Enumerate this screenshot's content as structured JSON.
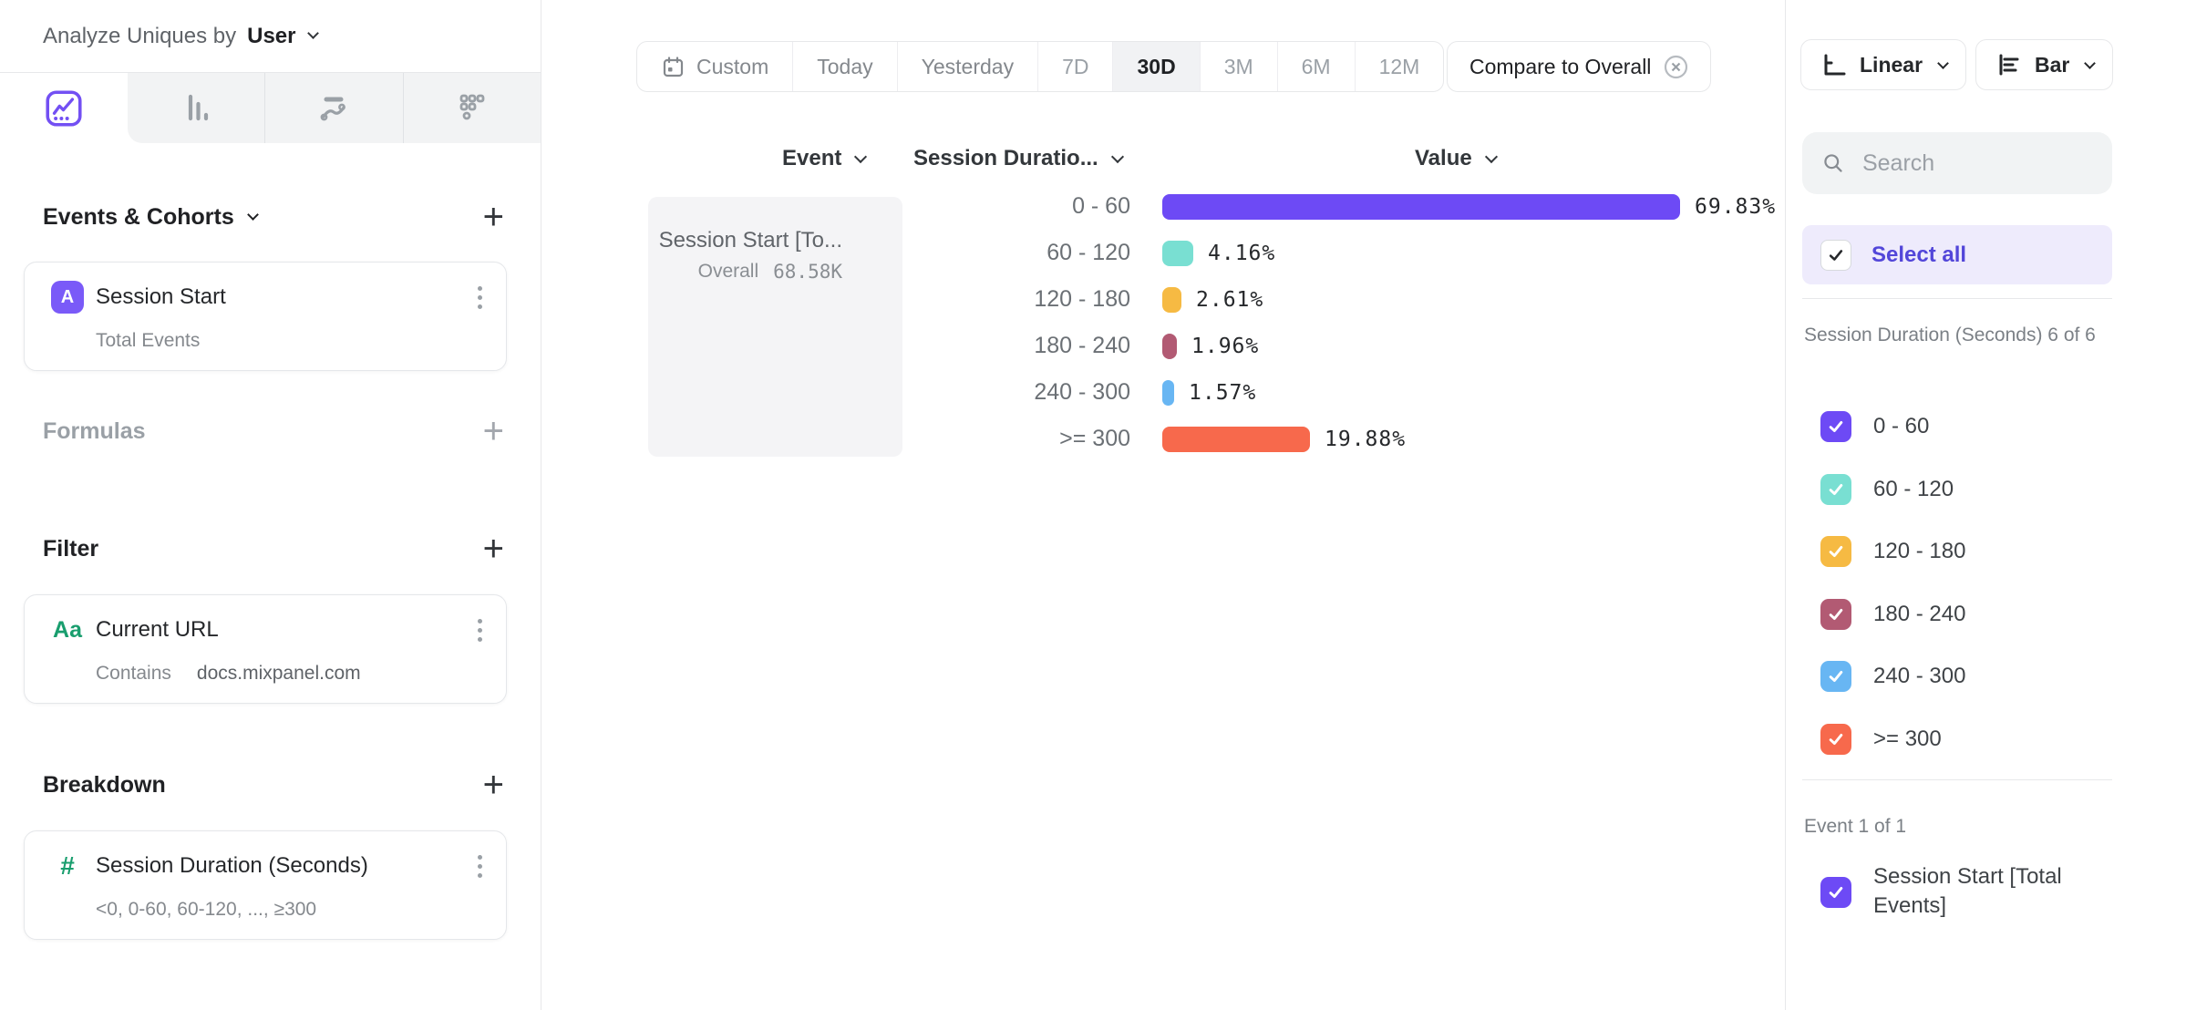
{
  "colors": {
    "accent_purple": "#6d4af5",
    "select_all_bg": "#eeebfc",
    "select_all_text": "#5246d9",
    "tab_gray_bg": "#f2f3f4",
    "event_card_bg": "#f4f4f6"
  },
  "sidebar": {
    "analyze_label": "Analyze Uniques by",
    "analyze_value": "User",
    "tabs": [
      "insights-line-chart",
      "bar-chart",
      "flows",
      "retention-dots"
    ],
    "events_section": {
      "title": "Events & Cohorts",
      "add_label": "+",
      "card": {
        "badge": "A",
        "title": "Session Start",
        "subtitle": "Total Events"
      }
    },
    "formulas_section": {
      "title": "Formulas",
      "add_label": "+"
    },
    "filter_section": {
      "title": "Filter",
      "add_label": "+",
      "card": {
        "icon": "Aa",
        "title": "Current URL",
        "operator": "Contains",
        "value": "docs.mixpanel.com"
      }
    },
    "breakdown_section": {
      "title": "Breakdown",
      "add_label": "+",
      "card": {
        "icon": "#",
        "title": "Session Duration (Seconds)",
        "subtitle": "<0, 0-60, 60-120, ..., ≥300"
      }
    }
  },
  "toolbar": {
    "segments": [
      {
        "label": "Custom",
        "tone": "mid",
        "icon": "calendar"
      },
      {
        "label": "Today",
        "tone": "mid"
      },
      {
        "label": "Yesterday",
        "tone": "mid"
      },
      {
        "label": "7D",
        "tone": "light"
      },
      {
        "label": "30D",
        "tone": "selected"
      },
      {
        "label": "3M",
        "tone": "light"
      },
      {
        "label": "6M",
        "tone": "light"
      },
      {
        "label": "12M",
        "tone": "light"
      }
    ],
    "selected_segment": "30D",
    "compare_label": "Compare to Overall",
    "scale_button": "Linear",
    "chart_type_button": "Bar"
  },
  "table": {
    "headers": {
      "event": "Event",
      "breakdown": "Session Duratio...",
      "value": "Value"
    },
    "event_card": {
      "title": "Session Start [To...",
      "overall_label": "Overall",
      "overall_value": "68.58K"
    }
  },
  "chart_data": {
    "type": "bar",
    "orientation": "horizontal",
    "title": "",
    "categories": [
      "0 - 60",
      "60 - 120",
      "120 - 180",
      "180 - 240",
      "240 - 300",
      ">= 300"
    ],
    "values": [
      69.83,
      4.16,
      2.61,
      1.96,
      1.57,
      19.88
    ],
    "value_labels": [
      "69.83%",
      "4.16%",
      "2.61%",
      "1.96%",
      "1.57%",
      "19.88%"
    ],
    "colors": [
      "#6d4af5",
      "#79dfd2",
      "#f6ba43",
      "#b25a73",
      "#68b6f3",
      "#f7694c"
    ],
    "series_name": "Session Start [Total Events]",
    "overall_value": "68.58K",
    "unit": "%",
    "xlim": [
      0,
      100
    ],
    "grid": false,
    "legend": "right-panel-checkboxes"
  },
  "right_panel": {
    "search_placeholder": "Search",
    "select_all_label": "Select all",
    "breakdown_group": {
      "label": "Session Duration (Seconds) 6 of 6",
      "items": [
        {
          "label": "0 - 60",
          "color": "#6d4af5",
          "checked": true
        },
        {
          "label": "60 - 120",
          "color": "#79dfd2",
          "checked": true
        },
        {
          "label": "120 - 180",
          "color": "#f6ba43",
          "checked": true
        },
        {
          "label": "180 - 240",
          "color": "#b25a73",
          "checked": true
        },
        {
          "label": "240 - 300",
          "color": "#68b6f3",
          "checked": true
        },
        {
          "label": ">= 300",
          "color": "#f7694c",
          "checked": true
        }
      ]
    },
    "event_group": {
      "label": "Event 1 of 1",
      "items": [
        {
          "label": "Session Start [Total Events]",
          "color": "#6d4af5",
          "checked": true
        }
      ]
    }
  }
}
